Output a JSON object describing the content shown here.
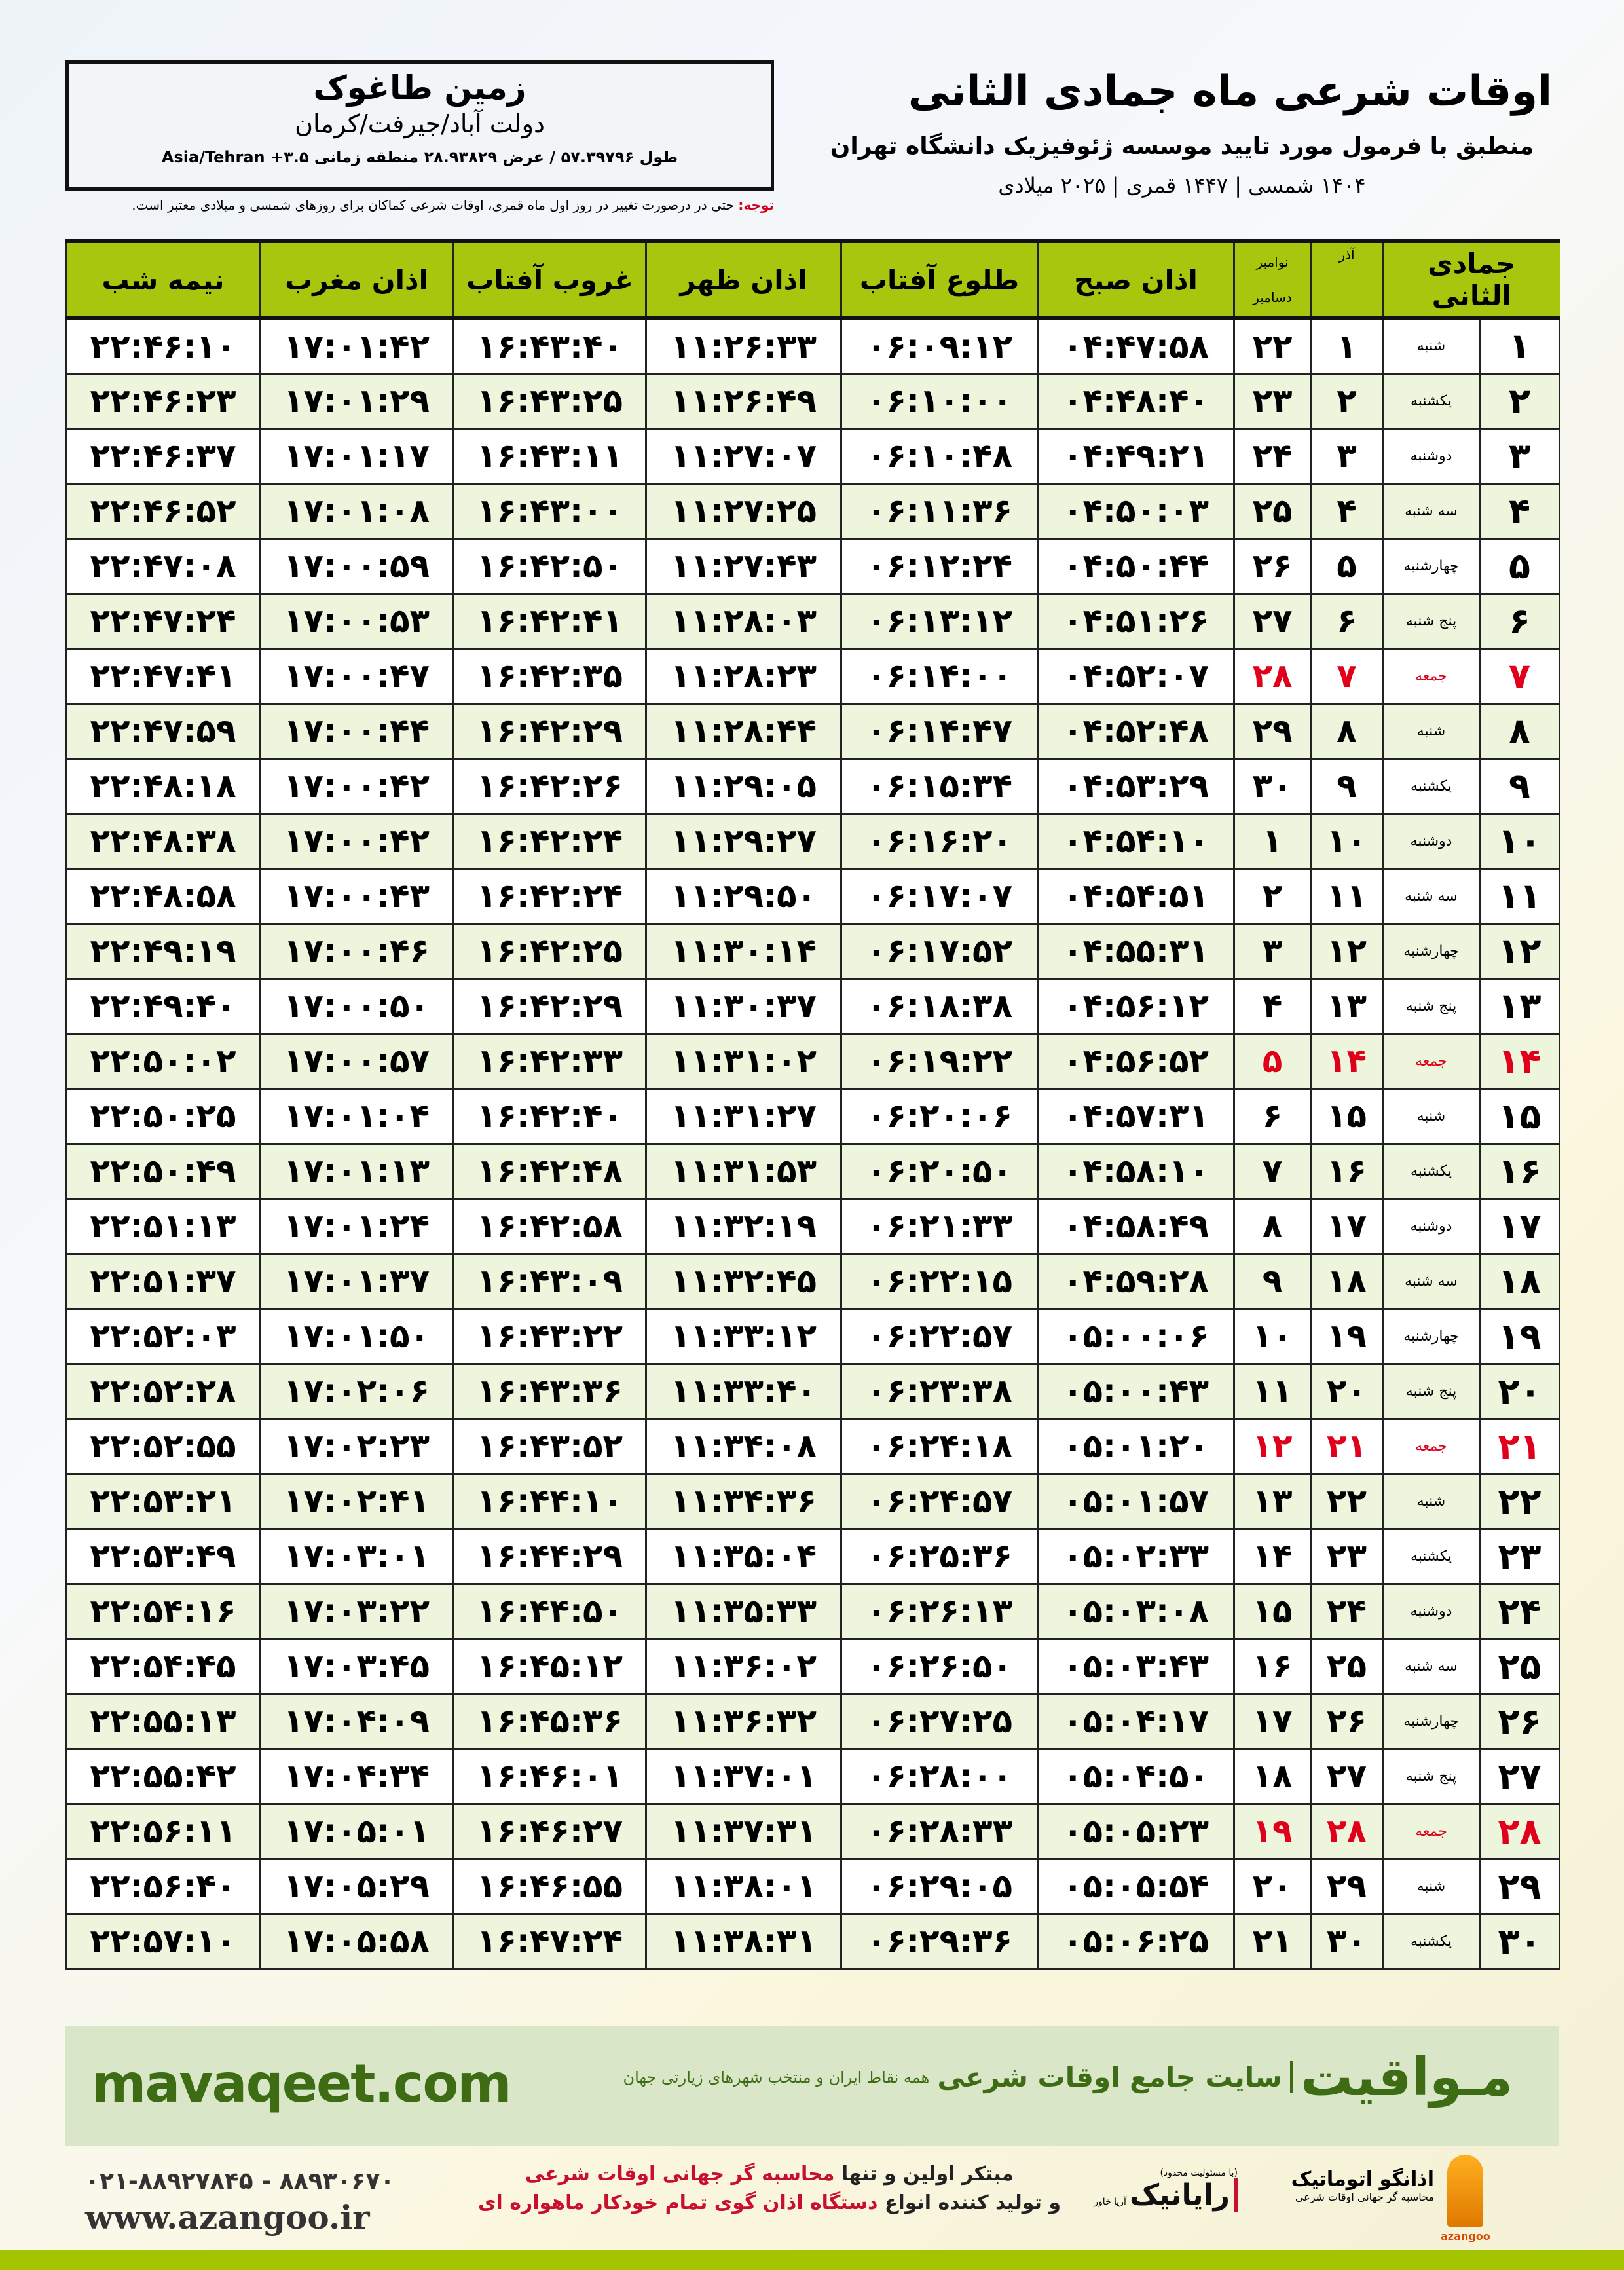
{
  "location": {
    "name": "زمین طاغوک",
    "region": "دولت آباد/جیرفت/کرمان",
    "coords": "طول ۵۷.۳۹۷۹۶ / عرض ۲۸.۹۳۸۲۹ منطقه زمانی ۳.۵+ Asia/Tehran"
  },
  "title": {
    "main": "اوقات شرعی ماه جمادی الثانی",
    "sub": "منطبق با فرمول مورد تایید موسسه ژئوفیزیک دانشگاه تهران",
    "dates": "۱۴۰۴ شمسی | ۱۴۴۷ قمری | ۲۰۲۵ میلادی"
  },
  "note": {
    "label": "توجه:",
    "text": " حتی در درصورت تغییر در روز اول ماه قمری، اوقات شرعی کماکان برای روزهای شمسی و میلادی معتبر است."
  },
  "table": {
    "headers": {
      "hijri": "جمادی الثانی",
      "azar": "آذر",
      "nov": "نوامبر",
      "dec": "دسامبر",
      "fajr": "اذان صبح",
      "sunrise": "طلوع آفتاب",
      "dhuhr": "اذان ظهر",
      "sunset": "غروب آفتاب",
      "maghrib": "اذان مغرب",
      "midnight": "نیمه شب"
    },
    "friday_color": "#e0001b",
    "rows": [
      [
        "۱",
        "شنبه",
        "۱",
        "۲۲",
        "۰۴:۴۷:۵۸",
        "۰۶:۰۹:۱۲",
        "۱۱:۲۶:۳۳",
        "۱۶:۴۳:۴۰",
        "۱۷:۰۱:۴۲",
        "۲۲:۴۶:۱۰"
      ],
      [
        "۲",
        "یکشنبه",
        "۲",
        "۲۳",
        "۰۴:۴۸:۴۰",
        "۰۶:۱۰:۰۰",
        "۱۱:۲۶:۴۹",
        "۱۶:۴۳:۲۵",
        "۱۷:۰۱:۲۹",
        "۲۲:۴۶:۲۳"
      ],
      [
        "۳",
        "دوشنبه",
        "۳",
        "۲۴",
        "۰۴:۴۹:۲۱",
        "۰۶:۱۰:۴۸",
        "۱۱:۲۷:۰۷",
        "۱۶:۴۳:۱۱",
        "۱۷:۰۱:۱۷",
        "۲۲:۴۶:۳۷"
      ],
      [
        "۴",
        "سه شنبه",
        "۴",
        "۲۵",
        "۰۴:۵۰:۰۳",
        "۰۶:۱۱:۳۶",
        "۱۱:۲۷:۲۵",
        "۱۶:۴۳:۰۰",
        "۱۷:۰۱:۰۸",
        "۲۲:۴۶:۵۲"
      ],
      [
        "۵",
        "چهارشنبه",
        "۵",
        "۲۶",
        "۰۴:۵۰:۴۴",
        "۰۶:۱۲:۲۴",
        "۱۱:۲۷:۴۳",
        "۱۶:۴۲:۵۰",
        "۱۷:۰۰:۵۹",
        "۲۲:۴۷:۰۸"
      ],
      [
        "۶",
        "پنج شنبه",
        "۶",
        "۲۷",
        "۰۴:۵۱:۲۶",
        "۰۶:۱۳:۱۲",
        "۱۱:۲۸:۰۳",
        "۱۶:۴۲:۴۱",
        "۱۷:۰۰:۵۳",
        "۲۲:۴۷:۲۴"
      ],
      [
        "۷",
        "جمعه",
        "۷",
        "۲۸",
        "۰۴:۵۲:۰۷",
        "۰۶:۱۴:۰۰",
        "۱۱:۲۸:۲۳",
        "۱۶:۴۲:۳۵",
        "۱۷:۰۰:۴۷",
        "۲۲:۴۷:۴۱"
      ],
      [
        "۸",
        "شنبه",
        "۸",
        "۲۹",
        "۰۴:۵۲:۴۸",
        "۰۶:۱۴:۴۷",
        "۱۱:۲۸:۴۴",
        "۱۶:۴۲:۲۹",
        "۱۷:۰۰:۴۴",
        "۲۲:۴۷:۵۹"
      ],
      [
        "۹",
        "یکشنبه",
        "۹",
        "۳۰",
        "۰۴:۵۳:۲۹",
        "۰۶:۱۵:۳۴",
        "۱۱:۲۹:۰۵",
        "۱۶:۴۲:۲۶",
        "۱۷:۰۰:۴۲",
        "۲۲:۴۸:۱۸"
      ],
      [
        "۱۰",
        "دوشنبه",
        "۱۰",
        "۱",
        "۰۴:۵۴:۱۰",
        "۰۶:۱۶:۲۰",
        "۱۱:۲۹:۲۷",
        "۱۶:۴۲:۲۴",
        "۱۷:۰۰:۴۲",
        "۲۲:۴۸:۳۸"
      ],
      [
        "۱۱",
        "سه شنبه",
        "۱۱",
        "۲",
        "۰۴:۵۴:۵۱",
        "۰۶:۱۷:۰۷",
        "۱۱:۲۹:۵۰",
        "۱۶:۴۲:۲۴",
        "۱۷:۰۰:۴۳",
        "۲۲:۴۸:۵۸"
      ],
      [
        "۱۲",
        "چهارشنبه",
        "۱۲",
        "۳",
        "۰۴:۵۵:۳۱",
        "۰۶:۱۷:۵۲",
        "۱۱:۳۰:۱۴",
        "۱۶:۴۲:۲۵",
        "۱۷:۰۰:۴۶",
        "۲۲:۴۹:۱۹"
      ],
      [
        "۱۳",
        "پنج شنبه",
        "۱۳",
        "۴",
        "۰۴:۵۶:۱۲",
        "۰۶:۱۸:۳۸",
        "۱۱:۳۰:۳۷",
        "۱۶:۴۲:۲۹",
        "۱۷:۰۰:۵۰",
        "۲۲:۴۹:۴۰"
      ],
      [
        "۱۴",
        "جمعه",
        "۱۴",
        "۵",
        "۰۴:۵۶:۵۲",
        "۰۶:۱۹:۲۲",
        "۱۱:۳۱:۰۲",
        "۱۶:۴۲:۳۳",
        "۱۷:۰۰:۵۷",
        "۲۲:۵۰:۰۲"
      ],
      [
        "۱۵",
        "شنبه",
        "۱۵",
        "۶",
        "۰۴:۵۷:۳۱",
        "۰۶:۲۰:۰۶",
        "۱۱:۳۱:۲۷",
        "۱۶:۴۲:۴۰",
        "۱۷:۰۱:۰۴",
        "۲۲:۵۰:۲۵"
      ],
      [
        "۱۶",
        "یکشنبه",
        "۱۶",
        "۷",
        "۰۴:۵۸:۱۰",
        "۰۶:۲۰:۵۰",
        "۱۱:۳۱:۵۳",
        "۱۶:۴۲:۴۸",
        "۱۷:۰۱:۱۳",
        "۲۲:۵۰:۴۹"
      ],
      [
        "۱۷",
        "دوشنبه",
        "۱۷",
        "۸",
        "۰۴:۵۸:۴۹",
        "۰۶:۲۱:۳۳",
        "۱۱:۳۲:۱۹",
        "۱۶:۴۲:۵۸",
        "۱۷:۰۱:۲۴",
        "۲۲:۵۱:۱۳"
      ],
      [
        "۱۸",
        "سه شنبه",
        "۱۸",
        "۹",
        "۰۴:۵۹:۲۸",
        "۰۶:۲۲:۱۵",
        "۱۱:۳۲:۴۵",
        "۱۶:۴۳:۰۹",
        "۱۷:۰۱:۳۷",
        "۲۲:۵۱:۳۷"
      ],
      [
        "۱۹",
        "چهارشنبه",
        "۱۹",
        "۱۰",
        "۰۵:۰۰:۰۶",
        "۰۶:۲۲:۵۷",
        "۱۱:۳۳:۱۲",
        "۱۶:۴۳:۲۲",
        "۱۷:۰۱:۵۰",
        "۲۲:۵۲:۰۳"
      ],
      [
        "۲۰",
        "پنج شنبه",
        "۲۰",
        "۱۱",
        "۰۵:۰۰:۴۳",
        "۰۶:۲۳:۳۸",
        "۱۱:۳۳:۴۰",
        "۱۶:۴۳:۳۶",
        "۱۷:۰۲:۰۶",
        "۲۲:۵۲:۲۸"
      ],
      [
        "۲۱",
        "جمعه",
        "۲۱",
        "۱۲",
        "۰۵:۰۱:۲۰",
        "۰۶:۲۴:۱۸",
        "۱۱:۳۴:۰۸",
        "۱۶:۴۳:۵۲",
        "۱۷:۰۲:۲۳",
        "۲۲:۵۲:۵۵"
      ],
      [
        "۲۲",
        "شنبه",
        "۲۲",
        "۱۳",
        "۰۵:۰۱:۵۷",
        "۰۶:۲۴:۵۷",
        "۱۱:۳۴:۳۶",
        "۱۶:۴۴:۱۰",
        "۱۷:۰۲:۴۱",
        "۲۲:۵۳:۲۱"
      ],
      [
        "۲۳",
        "یکشنبه",
        "۲۳",
        "۱۴",
        "۰۵:۰۲:۳۳",
        "۰۶:۲۵:۳۶",
        "۱۱:۳۵:۰۴",
        "۱۶:۴۴:۲۹",
        "۱۷:۰۳:۰۱",
        "۲۲:۵۳:۴۹"
      ],
      [
        "۲۴",
        "دوشنبه",
        "۲۴",
        "۱۵",
        "۰۵:۰۳:۰۸",
        "۰۶:۲۶:۱۳",
        "۱۱:۳۵:۳۳",
        "۱۶:۴۴:۵۰",
        "۱۷:۰۳:۲۲",
        "۲۲:۵۴:۱۶"
      ],
      [
        "۲۵",
        "سه شنبه",
        "۲۵",
        "۱۶",
        "۰۵:۰۳:۴۳",
        "۰۶:۲۶:۵۰",
        "۱۱:۳۶:۰۲",
        "۱۶:۴۵:۱۲",
        "۱۷:۰۳:۴۵",
        "۲۲:۵۴:۴۵"
      ],
      [
        "۲۶",
        "چهارشنبه",
        "۲۶",
        "۱۷",
        "۰۵:۰۴:۱۷",
        "۰۶:۲۷:۲۵",
        "۱۱:۳۶:۳۲",
        "۱۶:۴۵:۳۶",
        "۱۷:۰۴:۰۹",
        "۲۲:۵۵:۱۳"
      ],
      [
        "۲۷",
        "پنج شنبه",
        "۲۷",
        "۱۸",
        "۰۵:۰۴:۵۰",
        "۰۶:۲۸:۰۰",
        "۱۱:۳۷:۰۱",
        "۱۶:۴۶:۰۱",
        "۱۷:۰۴:۳۴",
        "۲۲:۵۵:۴۲"
      ],
      [
        "۲۸",
        "جمعه",
        "۲۸",
        "۱۹",
        "۰۵:۰۵:۲۳",
        "۰۶:۲۸:۳۳",
        "۱۱:۳۷:۳۱",
        "۱۶:۴۶:۲۷",
        "۱۷:۰۵:۰۱",
        "۲۲:۵۶:۱۱"
      ],
      [
        "۲۹",
        "شنبه",
        "۲۹",
        "۲۰",
        "۰۵:۰۵:۵۴",
        "۰۶:۲۹:۰۵",
        "۱۱:۳۸:۰۱",
        "۱۶:۴۶:۵۵",
        "۱۷:۰۵:۲۹",
        "۲۲:۵۶:۴۰"
      ],
      [
        "۳۰",
        "یکشنبه",
        "۳۰",
        "۲۱",
        "۰۵:۰۶:۲۵",
        "۰۶:۲۹:۳۶",
        "۱۱:۳۸:۳۱",
        "۱۶:۴۷:۲۴",
        "۱۷:۰۵:۵۸",
        "۲۲:۵۷:۱۰"
      ]
    ]
  },
  "footer": {
    "site": "mavaqeet.com",
    "brand": "مـواقیت",
    "brand_tag": "سایت جامع اوقات شرعی",
    "brand_sub": "همه نقاط ایران و منتخب شهرهای زیارتی جهان",
    "phone": "۰۲۱-۸۸۹۲۷۸۴۵ - ۸۸۹۳۰۶۷۰",
    "web": "www.azangoo.ir",
    "slogan1a": "مبتکر اولین و تنها ",
    "slogan1b": "محاسبه گر جهانی اوقات شرعی",
    "slogan2a": "و تولید کننده انواع ",
    "slogan2b": "دستگاه اذان گوی تمام خودکار ماهواره ای",
    "logo2_small": "(با مسئولیت محدود)",
    "logo2_name": "رایانیک",
    "logo2_side": "آریا خاور",
    "logo1_name": "اذانگو اتوماتیک",
    "logo1_sub": "محاسبه گر جهانی اوقات شرعی",
    "logo1_latin": "azangoo"
  },
  "colors": {
    "header_green": "#a7c60d",
    "footer_green": "#d9e7c8",
    "brand_green": "#3d6c14",
    "accent_red": "#c8102e"
  }
}
